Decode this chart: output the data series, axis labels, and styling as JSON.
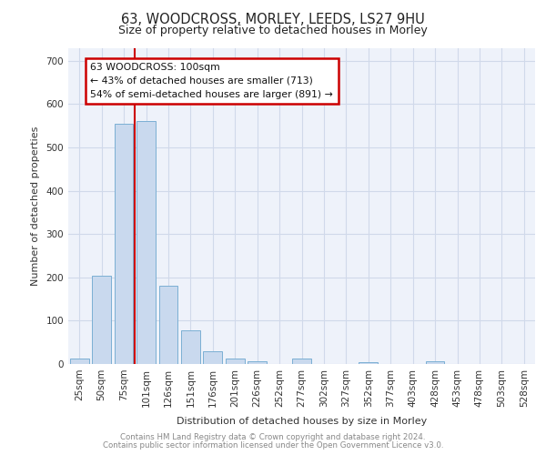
{
  "title1": "63, WOODCROSS, MORLEY, LEEDS, LS27 9HU",
  "title2": "Size of property relative to detached houses in Morley",
  "xlabel": "Distribution of detached houses by size in Morley",
  "ylabel": "Number of detached properties",
  "bar_labels": [
    "25sqm",
    "50sqm",
    "75sqm",
    "101sqm",
    "126sqm",
    "151sqm",
    "176sqm",
    "201sqm",
    "226sqm",
    "252sqm",
    "277sqm",
    "302sqm",
    "327sqm",
    "352sqm",
    "377sqm",
    "403sqm",
    "428sqm",
    "453sqm",
    "478sqm",
    "503sqm",
    "528sqm"
  ],
  "bar_values": [
    12,
    204,
    555,
    560,
    180,
    78,
    30,
    12,
    6,
    0,
    12,
    0,
    0,
    5,
    0,
    0,
    6,
    0,
    0,
    0,
    0
  ],
  "bar_color": "#c9d9ee",
  "bar_edge_color": "#7bafd4",
  "grid_color": "#d0d9ea",
  "annotation_text_line1": "63 WOODCROSS: 100sqm",
  "annotation_text_line2": "← 43% of detached houses are smaller (713)",
  "annotation_text_line3": "54% of semi-detached houses are larger (891) →",
  "annotation_box_color": "#ffffff",
  "annotation_box_edge": "#cc0000",
  "vline_color": "#cc0000",
  "vline_x_index": 3,
  "ylim": [
    0,
    730
  ],
  "yticks": [
    0,
    100,
    200,
    300,
    400,
    500,
    600,
    700
  ],
  "footer_line1": "Contains HM Land Registry data © Crown copyright and database right 2024.",
  "footer_line2": "Contains public sector information licensed under the Open Government Licence v3.0.",
  "bg_color": "#eef2fa",
  "fig_bg": "#ffffff",
  "title1_fontsize": 10.5,
  "title2_fontsize": 9,
  "axis_label_fontsize": 8,
  "tick_fontsize": 7.5,
  "footer_fontsize": 6.2
}
